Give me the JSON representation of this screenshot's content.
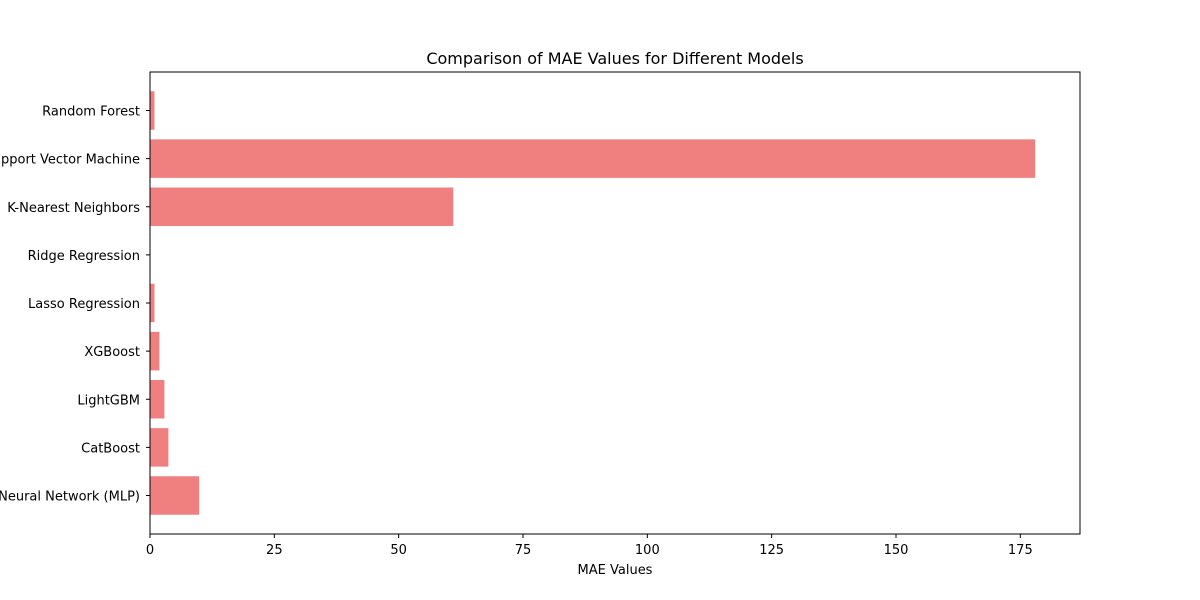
{
  "chart_data": {
    "type": "bar",
    "orientation": "horizontal",
    "title": "Comparison of MAE Values for Different Models",
    "xlabel": "MAE Values",
    "ylabel": "",
    "categories": [
      "Random Forest",
      "Support Vector Machine",
      "K-Nearest Neighbors",
      "Ridge Regression",
      "Lasso Regression",
      "XGBoost",
      "LightGBM",
      "CatBoost",
      "Neural Network (MLP)"
    ],
    "values": [
      0.9,
      178,
      61,
      0.05,
      0.9,
      1.9,
      2.9,
      3.7,
      9.9
    ],
    "xlim": [
      0,
      187
    ],
    "xticks": [
      0,
      25,
      50,
      75,
      100,
      125,
      150,
      175
    ],
    "bar_color": "#f08080",
    "grid": false
  }
}
